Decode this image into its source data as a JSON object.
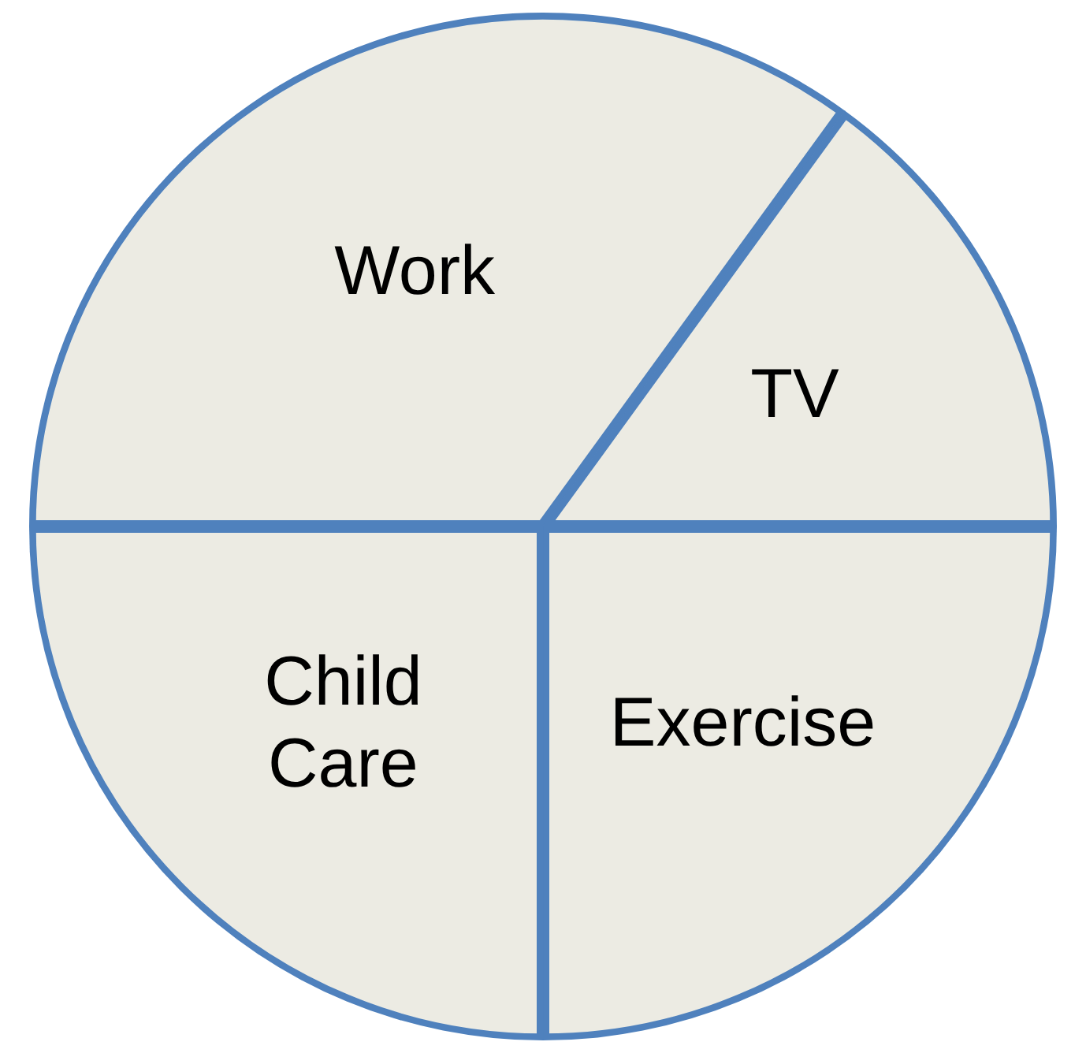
{
  "chart_data": {
    "type": "pie",
    "categories": [
      "Work",
      "TV",
      "Exercise",
      "Child Care"
    ],
    "values": [
      35,
      15,
      25,
      25
    ],
    "colors": [
      "#ecebe3",
      "#ecebe3",
      "#ecebe3",
      "#ecebe3"
    ],
    "legend": false
  }
}
